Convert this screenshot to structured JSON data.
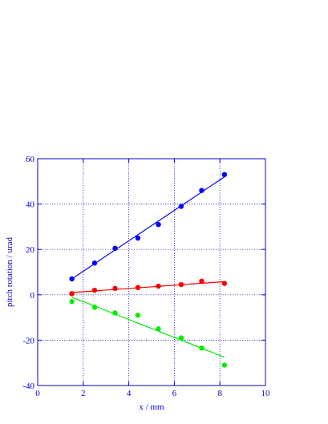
{
  "chart_data": {
    "type": "scatter",
    "title": "",
    "xlabel": "x / mm",
    "ylabel": "pitch rotation / urad",
    "xlim": [
      0,
      10
    ],
    "ylim": [
      -40,
      60
    ],
    "x_ticks": [
      0,
      2,
      4,
      6,
      8,
      10
    ],
    "y_ticks": [
      -40,
      -20,
      0,
      20,
      40,
      60
    ],
    "grid": true,
    "axis_color": "#0000cc",
    "series": [
      {
        "color": "#0000ff",
        "x": [
          1.5,
          2.5,
          3.4,
          4.4,
          5.3,
          6.3,
          7.2,
          8.2
        ],
        "y": [
          7,
          14,
          20.5,
          25,
          31,
          39,
          46,
          53
        ],
        "fit": {
          "x": [
            1.5,
            8.2
          ],
          "y": [
            7,
            52
          ]
        }
      },
      {
        "color": "#ff0000",
        "x": [
          1.5,
          2.5,
          3.4,
          4.4,
          5.3,
          6.3,
          7.2,
          8.2
        ],
        "y": [
          0.5,
          2,
          2.8,
          3.2,
          3.8,
          4.5,
          6,
          5
        ],
        "fit": {
          "x": [
            1.5,
            8.2
          ],
          "y": [
            1,
            5.8
          ]
        }
      },
      {
        "color": "#00ee00",
        "x": [
          1.5,
          2.5,
          3.4,
          4.4,
          5.3,
          6.3,
          7.2,
          8.2
        ],
        "y": [
          -3,
          -5.5,
          -8,
          -9,
          -15,
          -19,
          -23.5,
          -31
        ],
        "fit": {
          "x": [
            1.5,
            8.2
          ],
          "y": [
            -1,
            -27.5
          ]
        }
      }
    ]
  }
}
